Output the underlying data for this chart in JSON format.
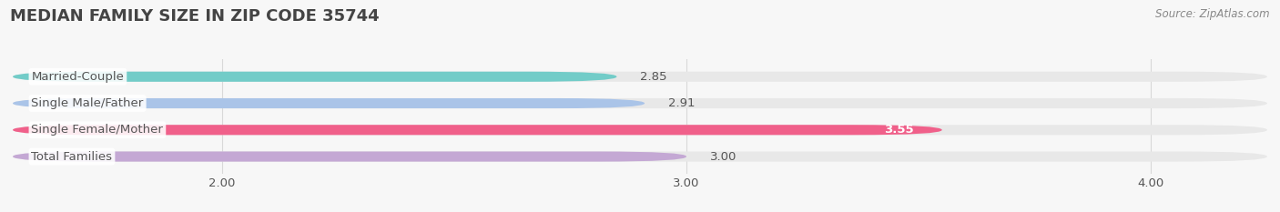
{
  "title": "MEDIAN FAMILY SIZE IN ZIP CODE 35744",
  "source": "Source: ZipAtlas.com",
  "categories": [
    "Married-Couple",
    "Single Male/Father",
    "Single Female/Mother",
    "Total Families"
  ],
  "values": [
    2.85,
    2.91,
    3.55,
    3.0
  ],
  "bar_colors": [
    "#72ccc8",
    "#aac4e8",
    "#f0608a",
    "#c4a8d4"
  ],
  "bar_bg_color": "#e8e8e8",
  "xlim_left": 1.55,
  "xlim_right": 4.25,
  "xticks": [
    2.0,
    3.0,
    4.0
  ],
  "xtick_labels": [
    "2.00",
    "3.00",
    "4.00"
  ],
  "bar_height": 0.38,
  "bar_gap": 1.0,
  "label_fontsize": 9.5,
  "value_fontsize": 9.5,
  "title_fontsize": 13,
  "source_fontsize": 8.5,
  "background_color": "#f7f7f7",
  "grid_color": "#d8d8d8",
  "text_color": "#555555",
  "value_color_inside": "#ffffff",
  "value_color_outside": "#555555"
}
